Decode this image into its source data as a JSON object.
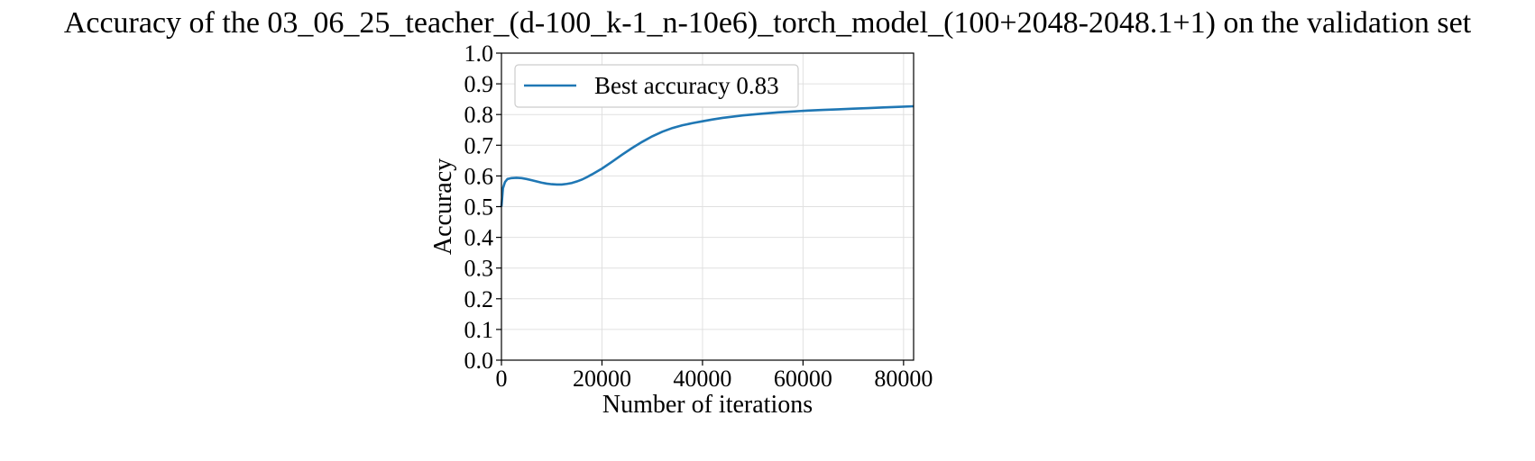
{
  "chart_data": {
    "type": "line",
    "title": "Accuracy of the 03_06_25_teacher_(d-100_k-1_n-10e6)_torch_model_(100+2048-2048.1+1) on the validation set",
    "xlabel": "Number of iterations",
    "ylabel": "Accuracy",
    "xlim": [
      0,
      82000
    ],
    "ylim": [
      0.0,
      1.0
    ],
    "xticks": [
      0,
      20000,
      40000,
      60000,
      80000
    ],
    "xtick_labels": [
      "0",
      "20000",
      "40000",
      "60000",
      "80000"
    ],
    "yticks": [
      0.0,
      0.1,
      0.2,
      0.3,
      0.4,
      0.5,
      0.6,
      0.7,
      0.8,
      0.9,
      1.0
    ],
    "ytick_labels": [
      "0.0",
      "0.1",
      "0.2",
      "0.3",
      "0.4",
      "0.5",
      "0.6",
      "0.7",
      "0.8",
      "0.9",
      "1.0"
    ],
    "grid": true,
    "legend_position": "upper-left",
    "series": [
      {
        "name": "Best accuracy 0.83",
        "color": "#1f77b4",
        "x": [
          0,
          300,
          700,
          1200,
          2000,
          3000,
          4000,
          5000,
          6000,
          7000,
          8000,
          9000,
          10000,
          11000,
          12000,
          13000,
          14000,
          15000,
          16000,
          17000,
          18000,
          20000,
          22000,
          24000,
          26000,
          28000,
          30000,
          32000,
          34000,
          36000,
          38000,
          40000,
          42000,
          44000,
          46000,
          48000,
          50000,
          52000,
          55000,
          58000,
          61000,
          64000,
          67000,
          70000,
          73000,
          76000,
          79000,
          82000
        ],
        "values": [
          0.5,
          0.56,
          0.58,
          0.59,
          0.593,
          0.594,
          0.593,
          0.59,
          0.586,
          0.582,
          0.578,
          0.575,
          0.573,
          0.572,
          0.572,
          0.574,
          0.577,
          0.582,
          0.588,
          0.596,
          0.605,
          0.624,
          0.646,
          0.669,
          0.691,
          0.711,
          0.729,
          0.744,
          0.756,
          0.765,
          0.772,
          0.778,
          0.784,
          0.789,
          0.793,
          0.797,
          0.8,
          0.803,
          0.807,
          0.81,
          0.813,
          0.815,
          0.817,
          0.819,
          0.821,
          0.823,
          0.825,
          0.827
        ]
      }
    ]
  }
}
